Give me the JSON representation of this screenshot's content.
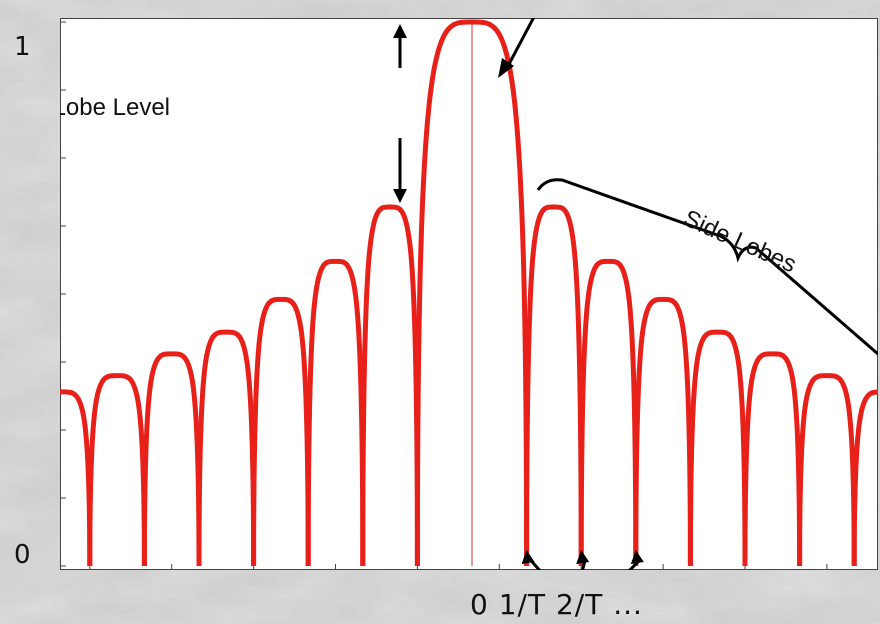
{
  "chart_data": {
    "type": "line",
    "title": "",
    "xlabel": "",
    "ylabel": "",
    "ylim": [
      0,
      1
    ],
    "yticks": [
      "0",
      "1"
    ],
    "series": [
      {
        "color": "#e8201a",
        "lobes": [
          {
            "center": -7.5,
            "peak": 0.32
          },
          {
            "center": -6.5,
            "peak": 0.35
          },
          {
            "center": -5.5,
            "peak": 0.39
          },
          {
            "center": -4.5,
            "peak": 0.43
          },
          {
            "center": -3.5,
            "peak": 0.49
          },
          {
            "center": -2.5,
            "peak": 0.56
          },
          {
            "center": -1.5,
            "peak": 0.66
          },
          {
            "center": 0,
            "peak": 1.0
          },
          {
            "center": 1.5,
            "peak": 0.66
          },
          {
            "center": 2.5,
            "peak": 0.56
          },
          {
            "center": 3.5,
            "peak": 0.49
          },
          {
            "center": 4.5,
            "peak": 0.43
          },
          {
            "center": 5.5,
            "peak": 0.39
          },
          {
            "center": 6.5,
            "peak": 0.35
          },
          {
            "center": 7.5,
            "peak": 0.32
          }
        ]
      }
    ],
    "annotations": {
      "side_lobe_level": "Side Lobe Level",
      "side_lobes": "Side Lobes",
      "bottom_labels": "0 1/T 2/T ..."
    }
  }
}
